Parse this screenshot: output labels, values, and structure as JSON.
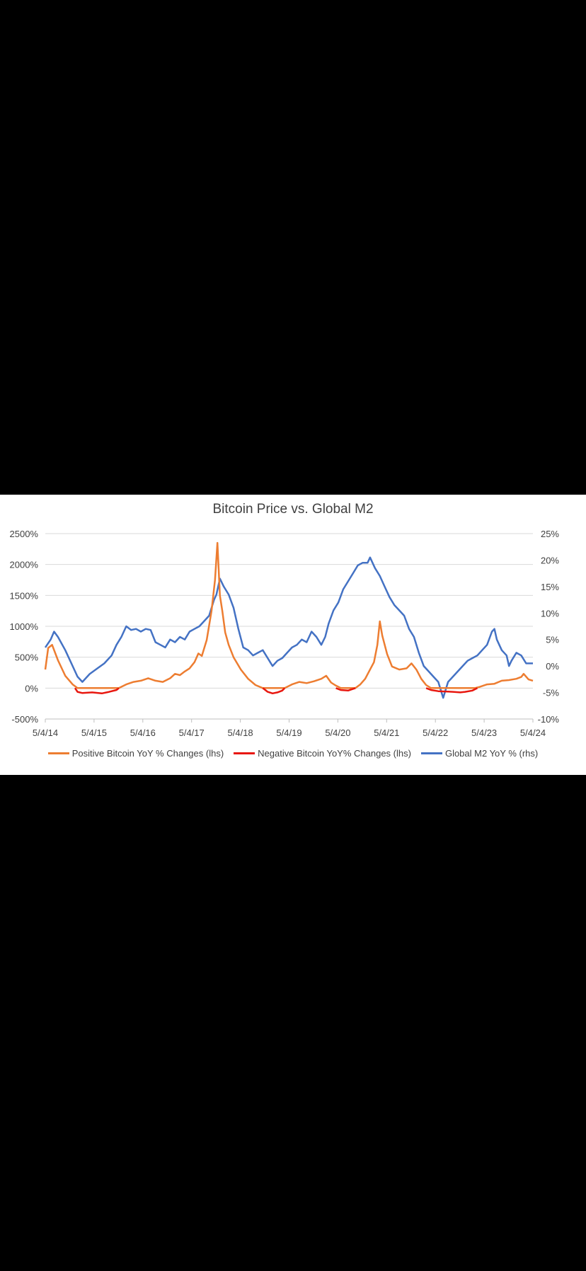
{
  "chart_data": {
    "type": "line",
    "title": "Bitcoin Price vs. Global M2",
    "x_ticks": [
      "5/4/14",
      "5/4/15",
      "5/4/16",
      "5/4/17",
      "5/4/18",
      "5/4/19",
      "5/4/20",
      "5/4/21",
      "5/4/22",
      "5/4/23",
      "5/4/24"
    ],
    "x_range": [
      2014.34,
      2024.34
    ],
    "y_left": {
      "ticks": [
        "2500%",
        "2000%",
        "1500%",
        "1000%",
        "500%",
        "0%",
        "-500%"
      ],
      "range": [
        -500,
        2500
      ]
    },
    "y_right": {
      "ticks": [
        "25%",
        "20%",
        "15%",
        "10%",
        "5%",
        "0%",
        "-5%",
        "-10%"
      ],
      "range": [
        -10,
        25
      ]
    },
    "grid": "horizontal",
    "legend_position": "bottom",
    "series": [
      {
        "name": "Positive Bitcoin YoY % Changes (lhs)",
        "axis": "left",
        "color": "#ED7D31",
        "points": [
          [
            2014.34,
            300
          ],
          [
            2014.4,
            650
          ],
          [
            2014.48,
            700
          ],
          [
            2014.6,
            450
          ],
          [
            2014.75,
            200
          ],
          [
            2014.9,
            60
          ],
          [
            2015.0,
            0
          ],
          [
            2015.85,
            0
          ],
          [
            2016.0,
            60
          ],
          [
            2016.15,
            100
          ],
          [
            2016.3,
            120
          ],
          [
            2016.45,
            160
          ],
          [
            2016.6,
            120
          ],
          [
            2016.75,
            100
          ],
          [
            2016.9,
            160
          ],
          [
            2017.0,
            230
          ],
          [
            2017.1,
            210
          ],
          [
            2017.2,
            270
          ],
          [
            2017.3,
            320
          ],
          [
            2017.4,
            420
          ],
          [
            2017.48,
            560
          ],
          [
            2017.55,
            520
          ],
          [
            2017.65,
            780
          ],
          [
            2017.75,
            1250
          ],
          [
            2017.82,
            1750
          ],
          [
            2017.87,
            2350
          ],
          [
            2017.92,
            1500
          ],
          [
            2017.97,
            1250
          ],
          [
            2018.03,
            900
          ],
          [
            2018.1,
            700
          ],
          [
            2018.2,
            500
          ],
          [
            2018.35,
            300
          ],
          [
            2018.5,
            150
          ],
          [
            2018.65,
            50
          ],
          [
            2018.8,
            0
          ],
          [
            2019.25,
            0
          ],
          [
            2019.4,
            60
          ],
          [
            2019.55,
            100
          ],
          [
            2019.7,
            80
          ],
          [
            2019.85,
            110
          ],
          [
            2020.0,
            150
          ],
          [
            2020.1,
            200
          ],
          [
            2020.2,
            90
          ],
          [
            2020.3,
            40
          ],
          [
            2020.4,
            0
          ],
          [
            2020.7,
            0
          ],
          [
            2020.8,
            60
          ],
          [
            2020.9,
            150
          ],
          [
            2021.0,
            300
          ],
          [
            2021.08,
            420
          ],
          [
            2021.15,
            700
          ],
          [
            2021.2,
            1080
          ],
          [
            2021.25,
            850
          ],
          [
            2021.35,
            550
          ],
          [
            2021.45,
            350
          ],
          [
            2021.6,
            300
          ],
          [
            2021.75,
            320
          ],
          [
            2021.85,
            400
          ],
          [
            2021.95,
            300
          ],
          [
            2022.05,
            150
          ],
          [
            2022.15,
            50
          ],
          [
            2022.25,
            0
          ],
          [
            2023.15,
            0
          ],
          [
            2023.25,
            20
          ],
          [
            2023.4,
            60
          ],
          [
            2023.55,
            70
          ],
          [
            2023.7,
            120
          ],
          [
            2023.85,
            130
          ],
          [
            2024.0,
            150
          ],
          [
            2024.1,
            180
          ],
          [
            2024.15,
            230
          ],
          [
            2024.25,
            140
          ],
          [
            2024.34,
            120
          ]
        ]
      },
      {
        "name": "Negative Bitcoin YoY% Changes (lhs)",
        "axis": "left",
        "color": "#E8170F",
        "segments": [
          [
            [
              2014.95,
              0
            ],
            [
              2015.0,
              -60
            ],
            [
              2015.1,
              -80
            ],
            [
              2015.3,
              -70
            ],
            [
              2015.5,
              -85
            ],
            [
              2015.65,
              -60
            ],
            [
              2015.8,
              -30
            ],
            [
              2015.85,
              0
            ]
          ],
          [
            [
              2018.8,
              0
            ],
            [
              2018.9,
              -60
            ],
            [
              2019.0,
              -85
            ],
            [
              2019.1,
              -70
            ],
            [
              2019.2,
              -40
            ],
            [
              2019.25,
              0
            ]
          ],
          [
            [
              2020.3,
              0
            ],
            [
              2020.4,
              -30
            ],
            [
              2020.55,
              -40
            ],
            [
              2020.7,
              0
            ]
          ],
          [
            [
              2022.15,
              0
            ],
            [
              2022.25,
              -30
            ],
            [
              2022.4,
              -50
            ],
            [
              2022.55,
              -55
            ],
            [
              2022.7,
              -60
            ],
            [
              2022.85,
              -70
            ],
            [
              2022.95,
              -60
            ],
            [
              2023.1,
              -40
            ],
            [
              2023.2,
              0
            ]
          ]
        ]
      },
      {
        "name": "Global M2 YoY % (rhs)",
        "axis": "right",
        "color": "#4472C4",
        "points": [
          [
            2014.34,
            3.5
          ],
          [
            2014.45,
            5
          ],
          [
            2014.52,
            6.5
          ],
          [
            2014.6,
            5.5
          ],
          [
            2014.75,
            3
          ],
          [
            2014.9,
            0
          ],
          [
            2015.0,
            -2
          ],
          [
            2015.1,
            -3
          ],
          [
            2015.25,
            -1.5
          ],
          [
            2015.4,
            -0.5
          ],
          [
            2015.55,
            0.5
          ],
          [
            2015.7,
            2
          ],
          [
            2015.8,
            4
          ],
          [
            2015.9,
            5.5
          ],
          [
            2016.0,
            7.5
          ],
          [
            2016.1,
            6.8
          ],
          [
            2016.2,
            7
          ],
          [
            2016.3,
            6.5
          ],
          [
            2016.4,
            7
          ],
          [
            2016.5,
            6.8
          ],
          [
            2016.6,
            4.5
          ],
          [
            2016.7,
            4
          ],
          [
            2016.8,
            3.5
          ],
          [
            2016.9,
            5
          ],
          [
            2017.0,
            4.5
          ],
          [
            2017.1,
            5.5
          ],
          [
            2017.2,
            5
          ],
          [
            2017.3,
            6.5
          ],
          [
            2017.4,
            7
          ],
          [
            2017.5,
            7.5
          ],
          [
            2017.6,
            8.5
          ],
          [
            2017.7,
            9.5
          ],
          [
            2017.8,
            12.5
          ],
          [
            2017.85,
            13.5
          ],
          [
            2017.92,
            16.5
          ],
          [
            2018.0,
            15
          ],
          [
            2018.1,
            13.5
          ],
          [
            2018.2,
            11
          ],
          [
            2018.3,
            7
          ],
          [
            2018.4,
            3.5
          ],
          [
            2018.5,
            3
          ],
          [
            2018.6,
            2
          ],
          [
            2018.7,
            2.5
          ],
          [
            2018.8,
            3
          ],
          [
            2018.9,
            1.5
          ],
          [
            2019.0,
            0
          ],
          [
            2019.1,
            1
          ],
          [
            2019.2,
            1.5
          ],
          [
            2019.3,
            2.5
          ],
          [
            2019.4,
            3.5
          ],
          [
            2019.5,
            4
          ],
          [
            2019.6,
            5
          ],
          [
            2019.7,
            4.5
          ],
          [
            2019.8,
            6.5
          ],
          [
            2019.9,
            5.5
          ],
          [
            2020.0,
            4
          ],
          [
            2020.08,
            5.5
          ],
          [
            2020.15,
            8
          ],
          [
            2020.25,
            10.5
          ],
          [
            2020.35,
            12
          ],
          [
            2020.45,
            14.5
          ],
          [
            2020.55,
            16
          ],
          [
            2020.65,
            17.5
          ],
          [
            2020.75,
            19
          ],
          [
            2020.85,
            19.5
          ],
          [
            2020.95,
            19.5
          ],
          [
            2021.0,
            20.5
          ],
          [
            2021.1,
            18.5
          ],
          [
            2021.2,
            17
          ],
          [
            2021.3,
            15
          ],
          [
            2021.4,
            13
          ],
          [
            2021.5,
            11.5
          ],
          [
            2021.6,
            10.5
          ],
          [
            2021.7,
            9.5
          ],
          [
            2021.8,
            7
          ],
          [
            2021.9,
            5.5
          ],
          [
            2022.0,
            2.5
          ],
          [
            2022.1,
            0
          ],
          [
            2022.2,
            -1
          ],
          [
            2022.3,
            -2
          ],
          [
            2022.4,
            -3
          ],
          [
            2022.5,
            -6
          ],
          [
            2022.6,
            -3
          ],
          [
            2022.7,
            -2
          ],
          [
            2022.8,
            -1
          ],
          [
            2022.9,
            0
          ],
          [
            2023.0,
            1
          ],
          [
            2023.1,
            1.5
          ],
          [
            2023.2,
            2
          ],
          [
            2023.3,
            3
          ],
          [
            2023.4,
            4
          ],
          [
            2023.5,
            6.5
          ],
          [
            2023.55,
            7
          ],
          [
            2023.6,
            5
          ],
          [
            2023.7,
            3
          ],
          [
            2023.8,
            2
          ],
          [
            2023.85,
            0
          ],
          [
            2023.9,
            1
          ],
          [
            2024.0,
            2.5
          ],
          [
            2024.1,
            2
          ],
          [
            2024.2,
            0.5
          ],
          [
            2024.34,
            0.5
          ]
        ]
      }
    ]
  }
}
